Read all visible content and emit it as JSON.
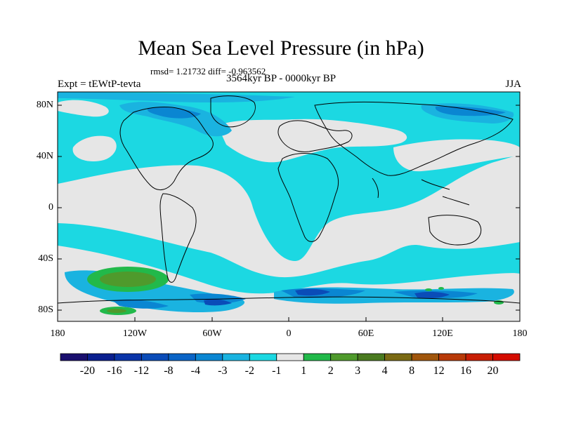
{
  "title": "Mean Sea Level Pressure (in hPa)",
  "stats": "rmsd= 1.21732 diff= -0.963562",
  "experiment": "Expt = tEWtP-tevta",
  "period": "3564kyr BP - 0000kyr BP",
  "season": "JJA",
  "y_axis_labels": [
    "80N",
    "40N",
    "0",
    "40S",
    "80S"
  ],
  "x_axis_labels": [
    "180",
    "120W",
    "60W",
    "0",
    "60E",
    "120E",
    "180"
  ],
  "colorbar": {
    "labels": [
      "-20",
      "-16",
      "-12",
      "-8",
      "-4",
      "-3",
      "-2",
      "-1",
      "1",
      "2",
      "3",
      "4",
      "8",
      "12",
      "16",
      "20"
    ],
    "colors": [
      "#1a0f6e",
      "#0a1f8f",
      "#0a34a8",
      "#0b4cb8",
      "#0a64c6",
      "#0a86d2",
      "#1ab3e0",
      "#1cd8e2",
      "#e6e6e6",
      "#22b94a",
      "#4f9a2c",
      "#4a7a20",
      "#7a6a14",
      "#a0560c",
      "#b83a08",
      "#c81e04",
      "#d40c00"
    ]
  },
  "palette": {
    "neutral": "#e6e6e6",
    "light_blue": "#1cd8e2",
    "mid_blue": "#1ab3e0",
    "blue": "#0a86d2",
    "dark_blue": "#0a4cb8",
    "green": "#4f9a2c",
    "land_line": "#000000"
  }
}
